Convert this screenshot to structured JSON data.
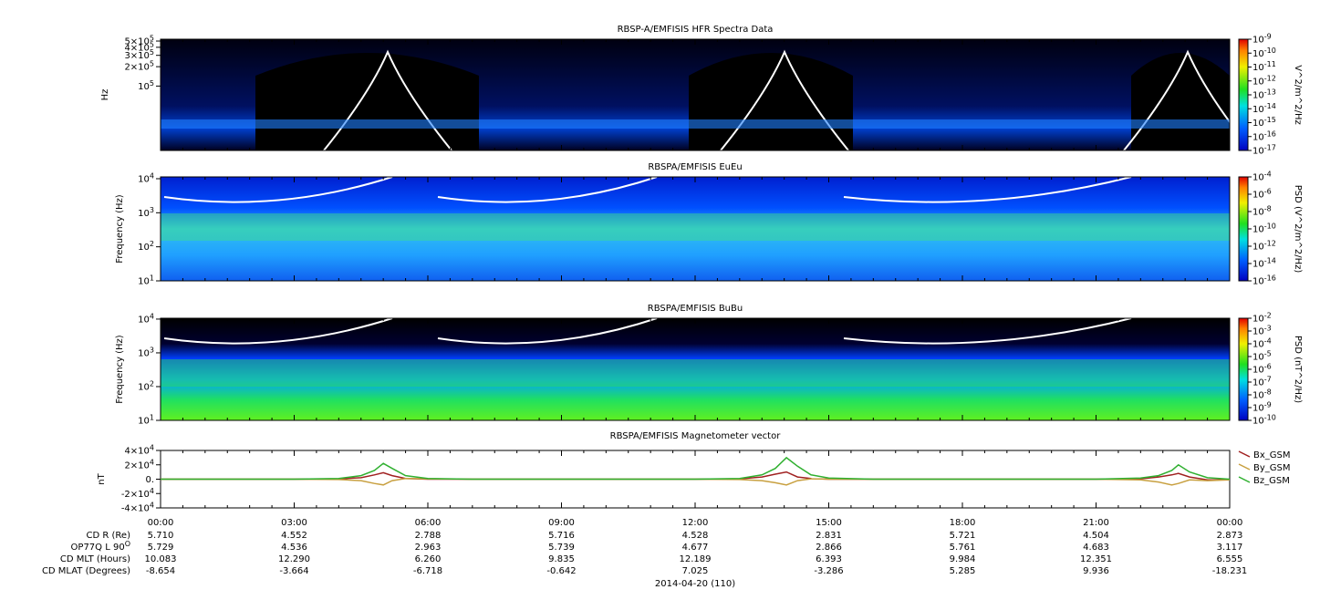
{
  "x_axis": {
    "xlim": [
      0,
      24
    ],
    "ticks": [
      {
        "value": 0,
        "label": "00:00"
      },
      {
        "value": 3,
        "label": "03:00"
      },
      {
        "value": 6,
        "label": "06:00"
      },
      {
        "value": 9,
        "label": "09:00"
      },
      {
        "value": 12,
        "label": "12:00"
      },
      {
        "value": 15,
        "label": "15:00"
      },
      {
        "value": 18,
        "label": "18:00"
      },
      {
        "value": 21,
        "label": "21:00"
      },
      {
        "value": 24,
        "label": "00:00"
      }
    ],
    "date": "2014-04-20 (110)"
  },
  "panels": [
    {
      "title": "RBSP-A/EMFISIS  HFR Spectra Data",
      "y_label": "Hz",
      "ylim": [
        10000,
        534000
      ],
      "log": true,
      "y_ticks": [
        {
          "value": 500000,
          "mantissa": "5×10",
          "exp": "5"
        },
        {
          "value": 400000,
          "mantissa": "4×10",
          "exp": "5"
        },
        {
          "value": 300000,
          "mantissa": "3×10",
          "exp": "5"
        },
        {
          "value": 200000,
          "mantissa": "2×10",
          "exp": "5"
        },
        {
          "value": 100000,
          "mantissa": "10",
          "exp": "5"
        }
      ],
      "colorbar": {
        "label": "V^2/m^2/Hz",
        "lim": [
          -17,
          -9
        ],
        "ticks": [
          {
            "value": -9,
            "mantissa": "10",
            "exp": "-9"
          },
          {
            "value": -10,
            "mantissa": "10",
            "exp": "-10"
          },
          {
            "value": -11,
            "mantissa": "10",
            "exp": "-11"
          },
          {
            "value": -12,
            "mantissa": "10",
            "exp": "-12"
          },
          {
            "value": -13,
            "mantissa": "10",
            "exp": "-13"
          },
          {
            "value": -14,
            "mantissa": "10",
            "exp": "-14"
          },
          {
            "value": -15,
            "mantissa": "10",
            "exp": "-15"
          },
          {
            "value": -16,
            "mantissa": "10",
            "exp": "-16"
          },
          {
            "value": -17,
            "mantissa": "10",
            "exp": "-17"
          }
        ]
      }
    },
    {
      "title": "RBSPA/EMFISIS  EuEu",
      "y_label": "Frequency (Hz)",
      "ylim": [
        10,
        11300
      ],
      "log": true,
      "y_ticks": [
        {
          "value": 10000,
          "mantissa": "10",
          "exp": "4"
        },
        {
          "value": 1000,
          "mantissa": "10",
          "exp": "3"
        },
        {
          "value": 100,
          "mantissa": "10",
          "exp": "2"
        },
        {
          "value": 10,
          "mantissa": "10",
          "exp": "1"
        }
      ],
      "colorbar": {
        "label": "PSD (V^2/m^2/Hz)",
        "lim": [
          -16,
          -4
        ],
        "ticks": [
          {
            "value": -4,
            "mantissa": "10",
            "exp": "-4"
          },
          {
            "value": -6,
            "mantissa": "10",
            "exp": "-6"
          },
          {
            "value": -8,
            "mantissa": "10",
            "exp": "-8"
          },
          {
            "value": -10,
            "mantissa": "10",
            "exp": "-10"
          },
          {
            "value": -12,
            "mantissa": "10",
            "exp": "-12"
          },
          {
            "value": -14,
            "mantissa": "10",
            "exp": "-14"
          },
          {
            "value": -16,
            "mantissa": "10",
            "exp": "-16"
          }
        ]
      }
    },
    {
      "title": "RBSPA/EMFISIS  BuBu",
      "y_label": "Frequency (Hz)",
      "ylim": [
        10,
        10600
      ],
      "log": true,
      "y_ticks": [
        {
          "value": 10000,
          "mantissa": "10",
          "exp": "4"
        },
        {
          "value": 1000,
          "mantissa": "10",
          "exp": "3"
        },
        {
          "value": 100,
          "mantissa": "10",
          "exp": "2"
        },
        {
          "value": 10,
          "mantissa": "10",
          "exp": "1"
        }
      ],
      "colorbar": {
        "label": "PSD (nT^2/Hz)",
        "lim": [
          -10,
          -2
        ],
        "ticks": [
          {
            "value": -2,
            "mantissa": "10",
            "exp": "-2"
          },
          {
            "value": -3,
            "mantissa": "10",
            "exp": "-3"
          },
          {
            "value": -4,
            "mantissa": "10",
            "exp": "-4"
          },
          {
            "value": -5,
            "mantissa": "10",
            "exp": "-5"
          },
          {
            "value": -6,
            "mantissa": "10",
            "exp": "-6"
          },
          {
            "value": -7,
            "mantissa": "10",
            "exp": "-7"
          },
          {
            "value": -8,
            "mantissa": "10",
            "exp": "-8"
          },
          {
            "value": -9,
            "mantissa": "10",
            "exp": "-9"
          },
          {
            "value": -10,
            "mantissa": "10",
            "exp": "-10"
          }
        ]
      }
    }
  ],
  "magnetometer": {
    "type": "line",
    "title": "RBSPA/EMFISIS  Magnetometer vector",
    "y_label": "nT",
    "ylim": [
      -40000,
      40000
    ],
    "y_ticks": [
      {
        "value": 40000,
        "mantissa": "4×10",
        "exp": "4"
      },
      {
        "value": 20000,
        "mantissa": "2×10",
        "exp": "4"
      },
      {
        "value": 0,
        "label": "0."
      },
      {
        "value": -20000,
        "mantissa": "-2×10",
        "exp": "4"
      },
      {
        "value": -40000,
        "mantissa": "-4×10",
        "exp": "4"
      }
    ],
    "x": [
      0,
      3,
      4,
      4.5,
      4.8,
      5,
      5.2,
      5.5,
      6,
      7,
      12,
      13,
      13.5,
      13.8,
      14.05,
      14.3,
      14.6,
      15,
      16,
      21,
      22,
      22.4,
      22.7,
      22.85,
      23.1,
      23.5,
      24
    ],
    "series": [
      {
        "name": "Bx_GSM",
        "color": "#a02020",
        "values": [
          0,
          0,
          500,
          2000,
          6000,
          9000,
          5000,
          1000,
          0,
          0,
          0,
          500,
          3000,
          7000,
          10000,
          3000,
          1000,
          0,
          0,
          0,
          500,
          3000,
          6000,
          8000,
          3000,
          -1000,
          -1000
        ]
      },
      {
        "name": "By_GSM",
        "color": "#c8a040",
        "values": [
          0,
          0,
          -500,
          -2000,
          -6000,
          -8000,
          -2000,
          1000,
          500,
          0,
          0,
          -500,
          -2000,
          -5000,
          -8000,
          -2000,
          500,
          0,
          0,
          0,
          -1000,
          -4000,
          -8000,
          -6000,
          -1000,
          -2000,
          -1000
        ]
      },
      {
        "name": "Bz_GSM",
        "color": "#30b030",
        "values": [
          0,
          0,
          1000,
          5000,
          12000,
          22000,
          15000,
          5000,
          1000,
          0,
          0,
          1000,
          6000,
          15000,
          30000,
          18000,
          6000,
          1500,
          0,
          0,
          1500,
          5000,
          12000,
          20000,
          10000,
          2000,
          0
        ]
      }
    ]
  },
  "ephemeris": [
    {
      "label": "CD R (Re)",
      "values": [
        "5.710",
        "4.552",
        "2.788",
        "5.716",
        "4.528",
        "2.831",
        "5.721",
        "4.504",
        "2.873"
      ]
    },
    {
      "label": "OP77Q L 90",
      "label_sup": "O",
      "values": [
        "5.729",
        "4.536",
        "2.963",
        "5.739",
        "4.677",
        "2.866",
        "5.761",
        "4.683",
        "3.117"
      ]
    },
    {
      "label": "CD MLT (Hours)",
      "values": [
        "10.083",
        "12.290",
        "6.260",
        "9.835",
        "12.189",
        "6.393",
        "9.984",
        "12.351",
        "6.555"
      ]
    },
    {
      "label": "CD MLAT (Degrees)",
      "values": [
        "-8.654",
        "-3.664",
        "-6.718",
        "-0.642",
        "7.025",
        "-3.286",
        "5.285",
        "9.936",
        "-18.231"
      ]
    }
  ]
}
